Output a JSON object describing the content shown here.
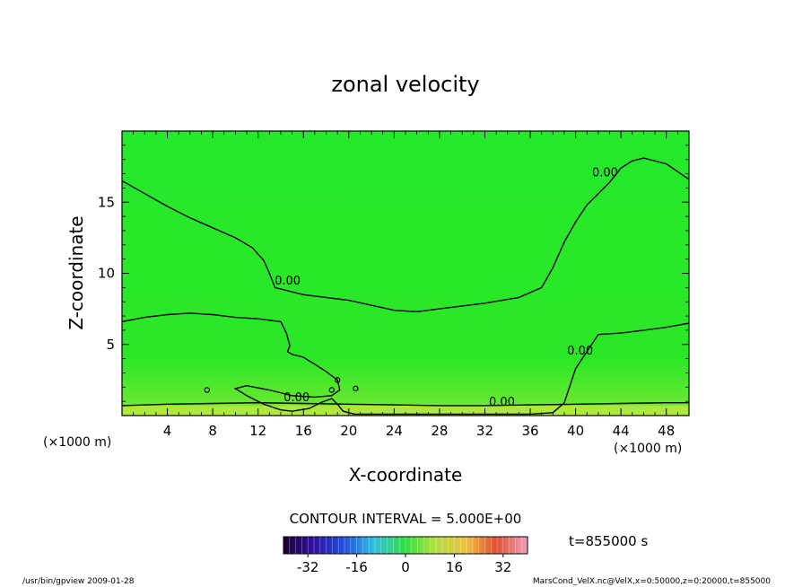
{
  "chart_data": {
    "type": "heatmap",
    "title": "zonal velocity",
    "xlabel": "X-coordinate",
    "ylabel": "Z-coordinate",
    "x_unit": "(×1000 m)",
    "y_unit": "(×1000 m)",
    "xlim": [
      0,
      50
    ],
    "ylim": [
      0,
      20
    ],
    "x_ticks": [
      4,
      8,
      12,
      16,
      20,
      24,
      28,
      32,
      36,
      40,
      44,
      48
    ],
    "y_ticks": [
      5,
      10,
      15
    ],
    "contour_interval_text": "CONTOUR INTERVAL = 5.000E+00",
    "time_text": "t=855000 s",
    "colorbar": {
      "range": [
        -40,
        40
      ],
      "ticks": [
        -32,
        -16,
        0,
        16,
        32
      ]
    },
    "contour_labels": [
      {
        "text": "0.00",
        "x": 14.6,
        "z": 9.2
      },
      {
        "text": "0.00",
        "x": 42.6,
        "z": 16.8
      },
      {
        "text": "0.00",
        "x": 40.4,
        "z": 4.3
      },
      {
        "text": "0.00",
        "x": 15.4,
        "z": 1.0
      },
      {
        "text": "0.00",
        "x": 33.5,
        "z": 0.7
      }
    ],
    "contours_zero_level": [
      {
        "x": [
          0,
          2,
          4,
          6,
          8,
          10,
          11.5,
          12.5,
          13,
          13.5,
          16,
          20,
          24,
          26,
          28,
          32,
          35,
          37,
          38,
          39,
          40,
          41,
          42,
          43,
          44,
          45,
          46,
          48,
          50
        ],
        "z": [
          16.5,
          15.6,
          14.7,
          13.9,
          13.2,
          12.5,
          11.8,
          10.9,
          10.0,
          9.0,
          8.5,
          8.1,
          7.4,
          7.3,
          7.5,
          7.9,
          8.3,
          9.0,
          10.4,
          12.2,
          13.6,
          14.8,
          15.6,
          16.4,
          17.4,
          17.9,
          18.1,
          17.7,
          16.6
        ]
      },
      {
        "x": [
          0,
          2,
          4,
          6,
          8,
          10,
          12,
          14,
          14.5,
          14.8,
          14.6,
          15,
          16,
          17,
          18,
          19,
          19.2,
          18.5,
          17,
          15,
          13,
          11,
          10,
          11,
          12.5,
          14,
          15,
          16.5,
          17.5,
          18.5,
          19,
          19.5,
          20.5,
          21,
          22,
          24,
          28,
          32,
          36,
          38,
          39,
          40,
          42,
          44,
          46,
          48,
          50
        ],
        "z": [
          6.6,
          6.9,
          7.1,
          7.2,
          7.1,
          6.9,
          6.8,
          6.6,
          5.8,
          4.9,
          4.5,
          4.3,
          4.1,
          3.6,
          3.1,
          2.5,
          1.8,
          1.4,
          1.3,
          1.4,
          1.8,
          2.1,
          1.9,
          1.4,
          0.8,
          0.4,
          0.3,
          0.5,
          0.9,
          1.2,
          0.8,
          0.3,
          0.1,
          0.1,
          0.1,
          0.1,
          0.1,
          0.1,
          0.1,
          0.2,
          0.9,
          3.3,
          5.7,
          5.8,
          6.0,
          6.2,
          6.5
        ]
      },
      {
        "x": [
          0,
          4,
          8,
          12,
          16,
          20,
          24,
          28,
          32,
          36,
          40,
          44,
          48,
          50
        ],
        "z": [
          0.7,
          0.8,
          0.85,
          0.9,
          0.85,
          0.8,
          0.75,
          0.7,
          0.7,
          0.75,
          0.8,
          0.85,
          0.9,
          0.9
        ]
      }
    ]
  },
  "footer": {
    "left": "/usr/bin/gpview   2009-01-28",
    "right": "MarsCond_VelX.nc@VelX,x=0:50000,z=0:20000,t=855000"
  },
  "colors": {
    "field_top": "#25e82b",
    "field_mid": "#2be826",
    "field_bottom": "#9fe83c",
    "contour": "#000000"
  }
}
